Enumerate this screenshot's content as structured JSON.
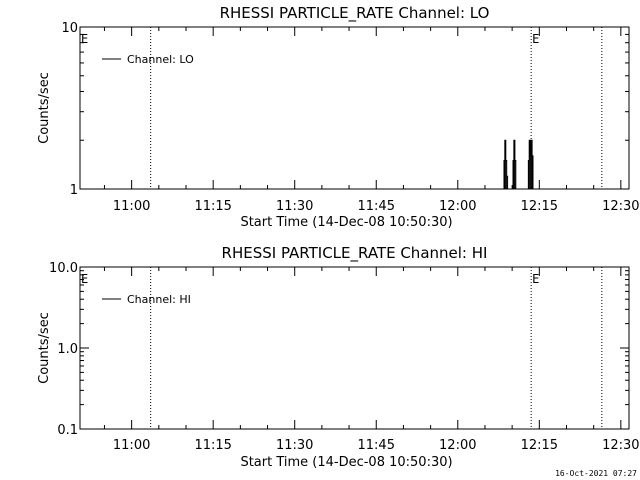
{
  "colors": {
    "background": "#ffffff",
    "foreground": "#000000"
  },
  "footer": {
    "timestamp": "16-Oct-2021 07:27"
  },
  "chart_data": [
    {
      "type": "line",
      "title": "RHESSI PARTICLE_RATE Channel: LO",
      "xlabel": "Start Time (14-Dec-08 10:50:30)",
      "ylabel": "Counts/sec",
      "y_scale": "log",
      "ylim": [
        1,
        10
      ],
      "y_ticks": [
        {
          "value": 1,
          "label": "1"
        },
        {
          "value": 10,
          "label": "10"
        }
      ],
      "x_unit": "time of day",
      "xlim": [
        "10:50:30",
        "12:31:30"
      ],
      "x_ticks": [
        {
          "value": "11:00",
          "label": "11:00"
        },
        {
          "value": "11:15",
          "label": "11:15"
        },
        {
          "value": "11:30",
          "label": "11:30"
        },
        {
          "value": "11:45",
          "label": "11:45"
        },
        {
          "value": "12:00",
          "label": "12:00"
        },
        {
          "value": "12:15",
          "label": "12:15"
        },
        {
          "value": "12:30",
          "label": "12:30"
        }
      ],
      "legend": {
        "position": "top-left",
        "entries": [
          "Channel: LO"
        ]
      },
      "series": [
        {
          "name": "Channel: LO",
          "x": [
            "12:08:20",
            "12:08:30",
            "12:08:40",
            "12:08:50",
            "12:09:00",
            "12:09:10",
            "12:10:00",
            "12:10:10",
            "12:10:20",
            "12:10:30",
            "12:10:40",
            "12:12:50",
            "12:13:00",
            "12:13:10",
            "12:13:20",
            "12:13:30",
            "12:13:40",
            "12:13:50"
          ],
          "y": [
            1,
            1.5,
            2,
            1.5,
            1.2,
            1,
            1,
            1.5,
            2,
            1.5,
            1,
            1,
            1.5,
            2,
            1.6,
            2,
            1.6,
            1
          ]
        }
      ],
      "event_markers": [
        {
          "time": "11:03:30",
          "label": ""
        },
        {
          "time": "12:13:30",
          "label": "E"
        },
        {
          "time": "12:26:30",
          "label": ""
        }
      ],
      "edge_labels": [
        {
          "position": "left",
          "label": "E"
        }
      ]
    },
    {
      "type": "line",
      "title": "RHESSI PARTICLE_RATE Channel: HI",
      "xlabel": "Start Time (14-Dec-08 10:50:30)",
      "ylabel": "Counts/sec",
      "y_scale": "log",
      "ylim": [
        0.1,
        10
      ],
      "y_ticks": [
        {
          "value": 0.1,
          "label": "0.1"
        },
        {
          "value": 1,
          "label": "1.0"
        },
        {
          "value": 10,
          "label": "10.0"
        }
      ],
      "x_unit": "time of day",
      "xlim": [
        "10:50:30",
        "12:31:30"
      ],
      "x_ticks": [
        {
          "value": "11:00",
          "label": "11:00"
        },
        {
          "value": "11:15",
          "label": "11:15"
        },
        {
          "value": "11:30",
          "label": "11:30"
        },
        {
          "value": "11:45",
          "label": "11:45"
        },
        {
          "value": "12:00",
          "label": "12:00"
        },
        {
          "value": "12:15",
          "label": "12:15"
        },
        {
          "value": "12:30",
          "label": "12:30"
        }
      ],
      "legend": {
        "position": "top-left",
        "entries": [
          "Channel: HI"
        ]
      },
      "series": [
        {
          "name": "Channel: HI",
          "x": [],
          "y": []
        }
      ],
      "event_markers": [
        {
          "time": "11:03:30",
          "label": ""
        },
        {
          "time": "12:13:30",
          "label": "E"
        },
        {
          "time": "12:26:30",
          "label": ""
        }
      ],
      "edge_labels": [
        {
          "position": "left",
          "label": "E"
        }
      ]
    }
  ]
}
